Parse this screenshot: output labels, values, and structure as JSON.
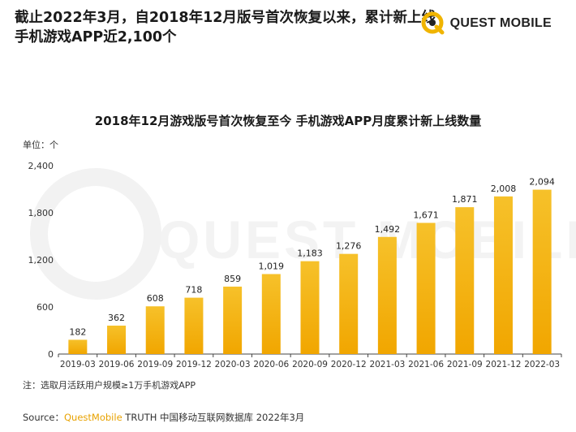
{
  "header": {
    "headline": "截止2022年3月，自2018年12月版号首次恢复以来，累计新上线手机游戏APP近2,100个",
    "logo_text": "QUEST MOBILE",
    "watermark_text": "QUEST MOBILE"
  },
  "colors": {
    "bar_top": "#f6c12a",
    "bar_bottom": "#f1a600",
    "accent": "#f0b400",
    "axis": "#444444"
  },
  "chart_data": {
    "type": "bar",
    "title": "2018年12月游戏版号首次恢复至今 手机游戏APP月度累计新上线数量",
    "unit_label": "单位：个",
    "categories": [
      "2019-03",
      "2019-06",
      "2019-09",
      "2019-12",
      "2020-03",
      "2020-06",
      "2020-09",
      "2020-12",
      "2021-03",
      "2021-06",
      "2021-09",
      "2021-12",
      "2022-03"
    ],
    "values": [
      182,
      362,
      608,
      718,
      859,
      1019,
      1183,
      1276,
      1492,
      1671,
      1871,
      2008,
      2094
    ],
    "value_labels": [
      "182",
      "362",
      "608",
      "718",
      "859",
      "1,019",
      "1,183",
      "1,276",
      "1,492",
      "1,671",
      "1,871",
      "2,008",
      "2,094"
    ],
    "y_ticks": [
      0,
      600,
      1200,
      1800,
      2400
    ],
    "y_tick_labels": [
      "0",
      "600",
      "1,200",
      "1,800",
      "2,400"
    ],
    "ylim": [
      0,
      2400
    ],
    "grid": false,
    "legend": "none"
  },
  "footer": {
    "note": "注：选取月活跃用户规模≥1万手机游戏APP",
    "source_prefix": "Source：",
    "source_brand": "QuestMobile",
    "source_rest": " TRUTH 中国移动互联网数据库 2022年3月"
  }
}
